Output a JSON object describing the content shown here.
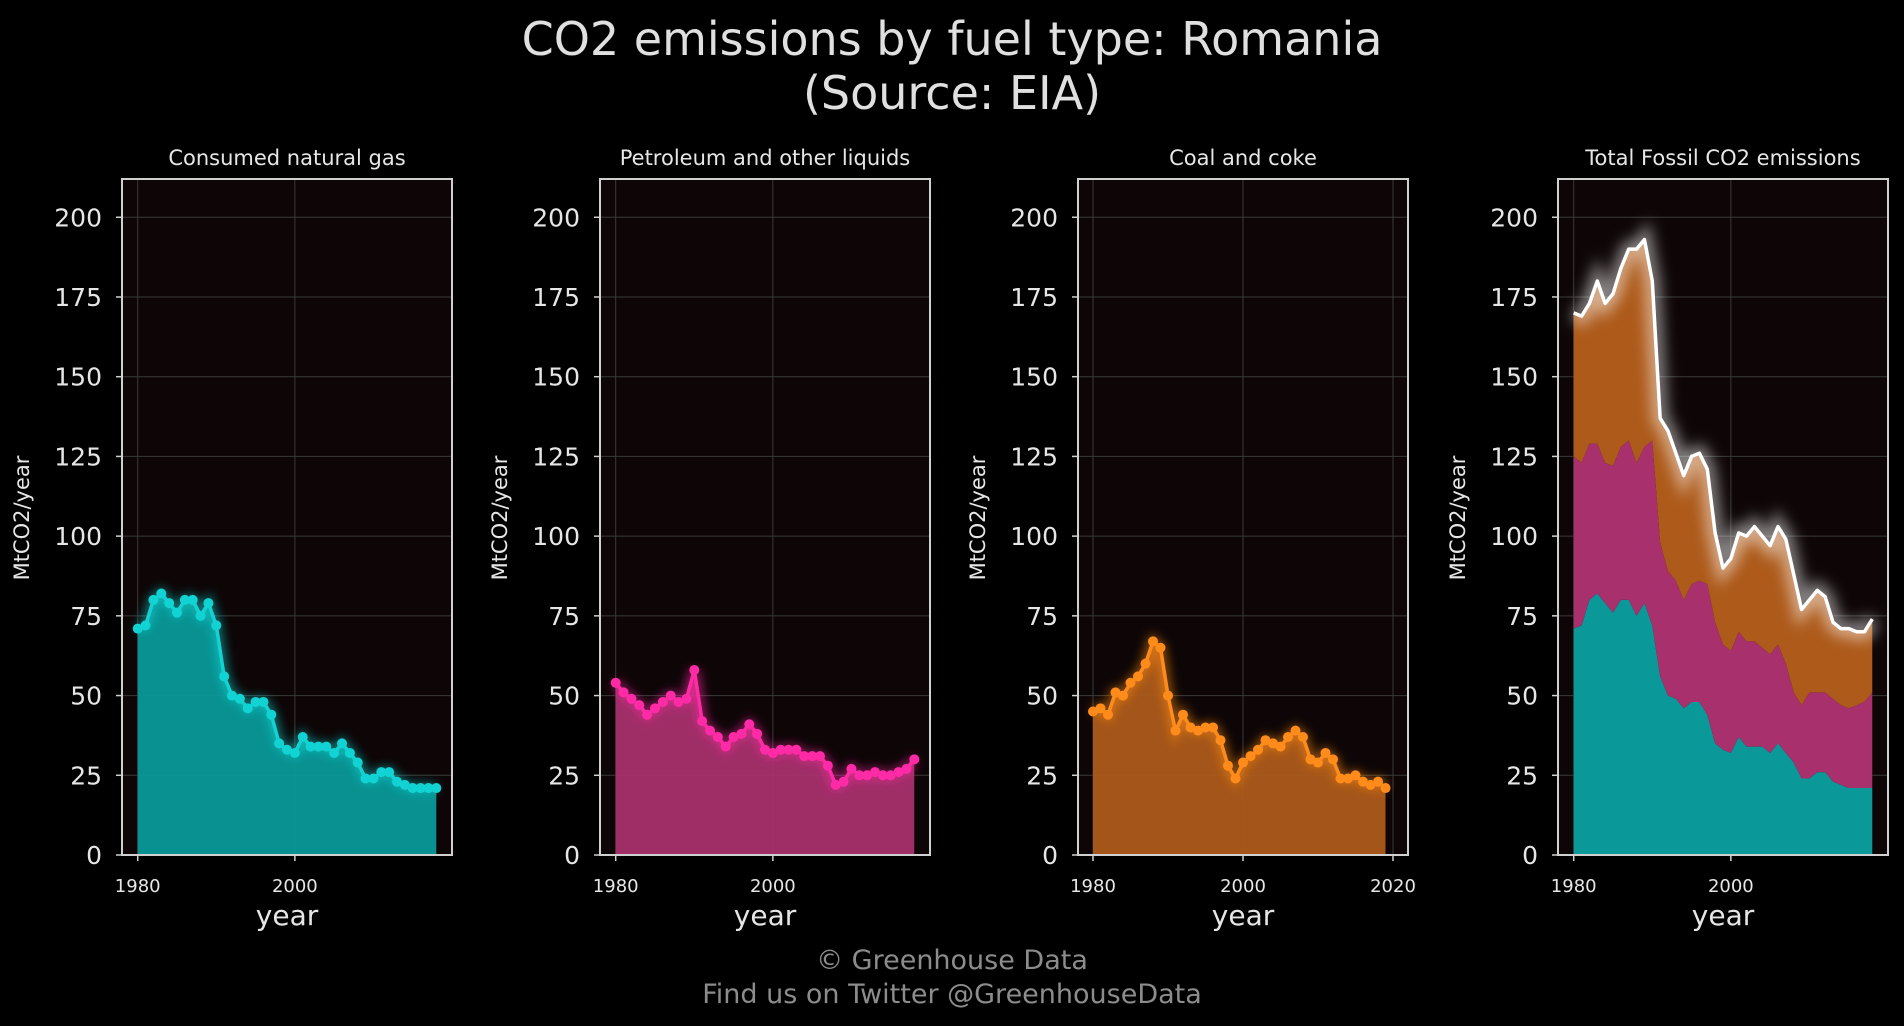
{
  "title_line1": "CO2 emissions by fuel type: Romania",
  "title_line2": "(Source: EIA)",
  "credit_line1": "© Greenhouse Data",
  "credit_line2": "Find us on Twitter @GreenhouseData",
  "chart_data": [
    {
      "type": "area",
      "title": "Consumed natural gas",
      "xlabel": "year",
      "ylabel": "MtCO2/year",
      "xlim": [
        1978,
        2020
      ],
      "ylim": [
        0,
        212
      ],
      "xticks": [
        "1980",
        "2000"
      ],
      "yticks": [
        "0",
        "25",
        "50",
        "75",
        "100",
        "125",
        "150",
        "175",
        "200"
      ],
      "color": "#12d3d3",
      "fill": "#0a9898",
      "series": [
        {
          "x": [
            1980,
            1981,
            1982,
            1983,
            1984,
            1985,
            1986,
            1987,
            1988,
            1989,
            1990,
            1991,
            1992,
            1993,
            1994,
            1995,
            1996,
            1997,
            1998,
            1999,
            2000,
            2001,
            2002,
            2003,
            2004,
            2005,
            2006,
            2007,
            2008,
            2009,
            2010,
            2011,
            2012,
            2013,
            2014,
            2015,
            2016,
            2017,
            2018
          ],
          "values": [
            71,
            72,
            80,
            82,
            79,
            76,
            80,
            80,
            75,
            79,
            72,
            56,
            50,
            49,
            46,
            48,
            48,
            44,
            35,
            33,
            32,
            37,
            34,
            34,
            34,
            32,
            35,
            32,
            29,
            24,
            24,
            26,
            26,
            23,
            22,
            21,
            21,
            21,
            21
          ]
        }
      ]
    },
    {
      "type": "area",
      "title": "Petroleum and other liquids",
      "xlabel": "year",
      "ylabel": "MtCO2/year",
      "xlim": [
        1978,
        2020
      ],
      "ylim": [
        0,
        212
      ],
      "xticks": [
        "1980",
        "2000"
      ],
      "yticks": [
        "0",
        "25",
        "50",
        "75",
        "100",
        "125",
        "150",
        "175",
        "200"
      ],
      "color": "#ff2ba6",
      "fill": "#a8306d",
      "series": [
        {
          "x": [
            1980,
            1981,
            1982,
            1983,
            1984,
            1985,
            1986,
            1987,
            1988,
            1989,
            1990,
            1991,
            1992,
            1993,
            1994,
            1995,
            1996,
            1997,
            1998,
            1999,
            2000,
            2001,
            2002,
            2003,
            2004,
            2005,
            2006,
            2007,
            2008,
            2009,
            2010,
            2011,
            2012,
            2013,
            2014,
            2015,
            2016,
            2017,
            2018
          ],
          "values": [
            54,
            51,
            49,
            47,
            44,
            46,
            48,
            50,
            48,
            49,
            58,
            42,
            39,
            37,
            34,
            37,
            38,
            41,
            38,
            33,
            32,
            33,
            33,
            33,
            31,
            31,
            31,
            28,
            22,
            23,
            27,
            25,
            25,
            26,
            25,
            25,
            26,
            27,
            30
          ]
        }
      ]
    },
    {
      "type": "area",
      "title": "Coal and coke",
      "xlabel": "year",
      "ylabel": "MtCO2/year",
      "xlim": [
        1978,
        2022
      ],
      "ylim": [
        0,
        212
      ],
      "xticks": [
        "1980",
        "2000",
        "2020"
      ],
      "yticks": [
        "0",
        "25",
        "50",
        "75",
        "100",
        "125",
        "150",
        "175",
        "200"
      ],
      "color": "#ff8c1a",
      "fill": "#ad5a1a",
      "series": [
        {
          "x": [
            1980,
            1981,
            1982,
            1983,
            1984,
            1985,
            1986,
            1987,
            1988,
            1989,
            1990,
            1991,
            1992,
            1993,
            1994,
            1995,
            1996,
            1997,
            1998,
            1999,
            2000,
            2001,
            2002,
            2003,
            2004,
            2005,
            2006,
            2007,
            2008,
            2009,
            2010,
            2011,
            2012,
            2013,
            2014,
            2015,
            2016,
            2017,
            2018,
            2019
          ],
          "values": [
            45,
            46,
            44,
            51,
            50,
            54,
            56,
            60,
            67,
            65,
            50,
            39,
            44,
            40,
            39,
            40,
            40,
            36,
            28,
            24,
            29,
            31,
            33,
            36,
            35,
            34,
            37,
            39,
            37,
            30,
            29,
            32,
            30,
            24,
            24,
            25,
            23,
            22,
            23,
            21
          ]
        }
      ]
    },
    {
      "type": "area",
      "stacked": true,
      "title": "Total Fossil CO2 emissions",
      "xlabel": "year",
      "ylabel": "MtCO2/year",
      "xlim": [
        1978,
        2020
      ],
      "ylim": [
        0,
        212
      ],
      "xticks": [
        "1980",
        "2000"
      ],
      "yticks": [
        "0",
        "25",
        "50",
        "75",
        "100",
        "125",
        "150",
        "175",
        "200"
      ],
      "colors": [
        "#0a9898",
        "#a8306d",
        "#ad5a1a"
      ],
      "total_color": "#ffffff",
      "x": [
        1980,
        1981,
        1982,
        1983,
        1984,
        1985,
        1986,
        1987,
        1988,
        1989,
        1990,
        1991,
        1992,
        1993,
        1994,
        1995,
        1996,
        1997,
        1998,
        1999,
        2000,
        2001,
        2002,
        2003,
        2004,
        2005,
        2006,
        2007,
        2008,
        2009,
        2010,
        2011,
        2012,
        2013,
        2014,
        2015,
        2016,
        2017,
        2018
      ],
      "series": [
        {
          "values": [
            71,
            72,
            80,
            82,
            79,
            76,
            80,
            80,
            75,
            79,
            72,
            56,
            50,
            49,
            46,
            48,
            48,
            44,
            35,
            33,
            32,
            37,
            34,
            34,
            34,
            32,
            35,
            32,
            29,
            24,
            24,
            26,
            26,
            23,
            22,
            21,
            21,
            21,
            21
          ]
        },
        {
          "values": [
            54,
            51,
            49,
            47,
            44,
            46,
            48,
            50,
            48,
            49,
            58,
            42,
            39,
            37,
            34,
            37,
            38,
            41,
            38,
            33,
            32,
            33,
            33,
            33,
            31,
            31,
            31,
            28,
            22,
            23,
            27,
            25,
            25,
            26,
            25,
            25,
            26,
            27,
            30
          ]
        },
        {
          "values": [
            45,
            46,
            44,
            51,
            50,
            54,
            56,
            60,
            67,
            65,
            50,
            39,
            44,
            40,
            39,
            40,
            40,
            36,
            28,
            24,
            29,
            31,
            33,
            36,
            35,
            34,
            37,
            39,
            37,
            30,
            29,
            32,
            30,
            24,
            24,
            25,
            23,
            22,
            23
          ]
        }
      ],
      "total": [
        170,
        169,
        173,
        180,
        173,
        176,
        184,
        190,
        190,
        193,
        180,
        137,
        133,
        126,
        119,
        125,
        126,
        121,
        101,
        90,
        93,
        101,
        100,
        103,
        100,
        97,
        103,
        99,
        88,
        77,
        80,
        83,
        81,
        73,
        71,
        71,
        70,
        70,
        74
      ]
    }
  ]
}
